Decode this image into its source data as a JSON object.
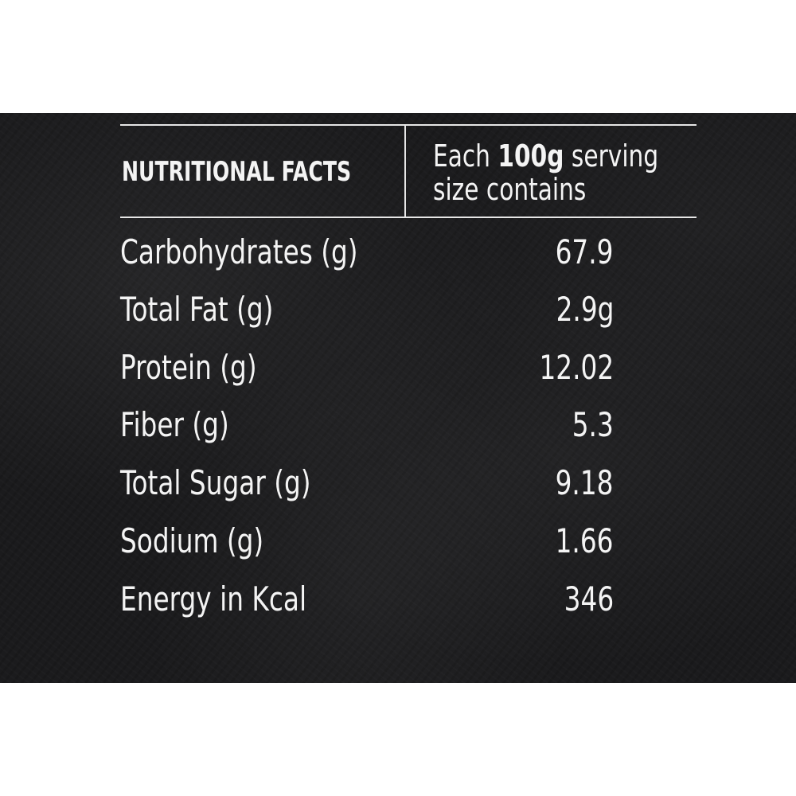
{
  "header": {
    "title": "NUTRITIONAL FACTS",
    "serving_prefix": "Each ",
    "serving_amount": "100g",
    "serving_suffix": " serving",
    "serving_line2": "size contains"
  },
  "rows": [
    {
      "label": "Carbohydrates (g)",
      "value": "67.9"
    },
    {
      "label": "Total Fat (g)",
      "value": "2.9g"
    },
    {
      "label": "Protein (g)",
      "value": "12.02"
    },
    {
      "label": "Fiber (g)",
      "value": "5.3"
    },
    {
      "label": "Total Sugar (g)",
      "value": "9.18"
    },
    {
      "label": "Sodium (g)",
      "value": "1.66"
    },
    {
      "label": "Energy in Kcal",
      "value": "346"
    }
  ],
  "colors": {
    "background": "#1b1b1d",
    "text": "#f4f4f4",
    "rule": "#e6e6e6"
  }
}
